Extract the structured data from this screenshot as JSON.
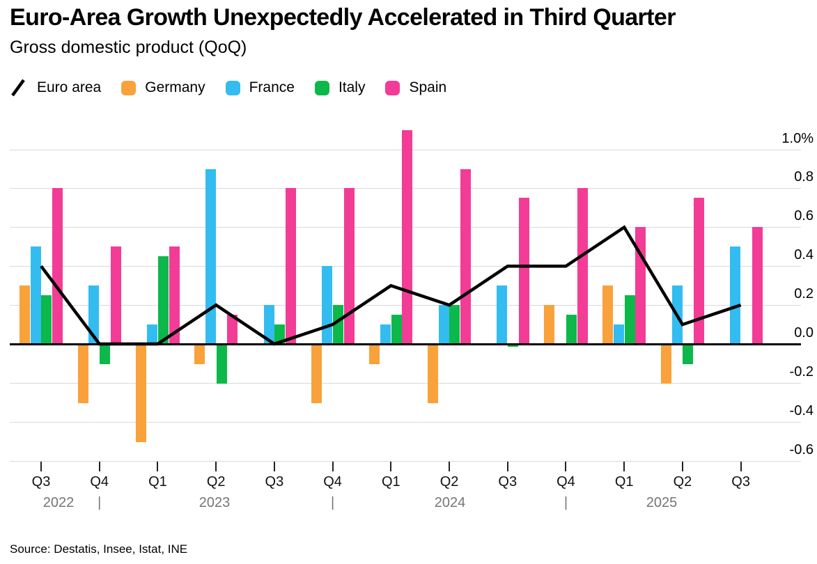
{
  "header": {
    "title": "Euro-Area Growth Unexpectedly Accelerated in Third Quarter",
    "subtitle": "Gross domestic product (QoQ)"
  },
  "legend": [
    {
      "label": "Euro area",
      "type": "line",
      "color": "#000000"
    },
    {
      "label": "Germany",
      "type": "swatch",
      "color": "#F9A13B"
    },
    {
      "label": "France",
      "type": "swatch",
      "color": "#33BCF0"
    },
    {
      "label": "Italy",
      "type": "swatch",
      "color": "#0CB84A"
    },
    {
      "label": "Spain",
      "type": "swatch",
      "color": "#F23C96"
    }
  ],
  "chart_data": {
    "type": "bar+line",
    "title": "Gross domestic product (QoQ)",
    "unit": "%",
    "categories": [
      "Q3 2022",
      "Q4 2022",
      "Q1 2023",
      "Q2 2023",
      "Q3 2023",
      "Q4 2023",
      "Q1 2024",
      "Q2 2024",
      "Q3 2024",
      "Q4 2024",
      "Q1 2025",
      "Q2 2025",
      "Q3 2025"
    ],
    "x_tick_labels": [
      "Q3",
      "Q4",
      "Q1",
      "Q2",
      "Q3",
      "Q4",
      "Q1",
      "Q2",
      "Q3",
      "Q4",
      "Q1",
      "Q2",
      "Q3"
    ],
    "years": [
      "2022",
      "2023",
      "2024",
      "2025"
    ],
    "series": [
      {
        "name": "Euro area",
        "type": "line",
        "color": "#000000",
        "values": [
          0.4,
          0.0,
          0.0,
          0.2,
          0.0,
          0.1,
          0.3,
          0.2,
          0.4,
          0.4,
          0.6,
          0.1,
          0.2
        ]
      },
      {
        "name": "Germany",
        "type": "bar",
        "color": "#F9A13B",
        "values": [
          0.3,
          -0.3,
          -0.5,
          -0.1,
          0.0,
          -0.3,
          -0.1,
          -0.3,
          0.0,
          0.2,
          0.3,
          -0.2,
          0.0
        ]
      },
      {
        "name": "France",
        "type": "bar",
        "color": "#33BCF0",
        "values": [
          0.5,
          0.3,
          0.1,
          0.9,
          0.2,
          0.4,
          0.1,
          0.2,
          0.3,
          0.0,
          0.1,
          0.3,
          0.5
        ]
      },
      {
        "name": "Italy",
        "type": "bar",
        "color": "#0CB84A",
        "values": [
          0.25,
          -0.1,
          0.45,
          -0.2,
          0.1,
          0.2,
          0.15,
          0.2,
          -0.01,
          0.15,
          0.25,
          -0.1,
          0.0
        ]
      },
      {
        "name": "Spain",
        "type": "bar",
        "color": "#F23C96",
        "values": [
          0.8,
          0.5,
          0.5,
          0.15,
          0.8,
          0.8,
          1.1,
          0.9,
          0.75,
          0.8,
          0.6,
          0.75,
          0.6
        ]
      }
    ],
    "y_axis": {
      "tick_labels": [
        "1.0%",
        "0.8",
        "0.6",
        "0.4",
        "0.2",
        "0.0",
        "-0.2",
        "-0.4",
        "-0.6"
      ],
      "tick_values": [
        1.0,
        0.8,
        0.6,
        0.4,
        0.2,
        0.0,
        -0.2,
        -0.4,
        -0.6
      ],
      "position": "right"
    },
    "ylim": [
      -0.7,
      1.15
    ],
    "grid": true,
    "legend_position": "top"
  },
  "footer": {
    "source": "Source: Destatis, Insee, Istat, INE"
  }
}
